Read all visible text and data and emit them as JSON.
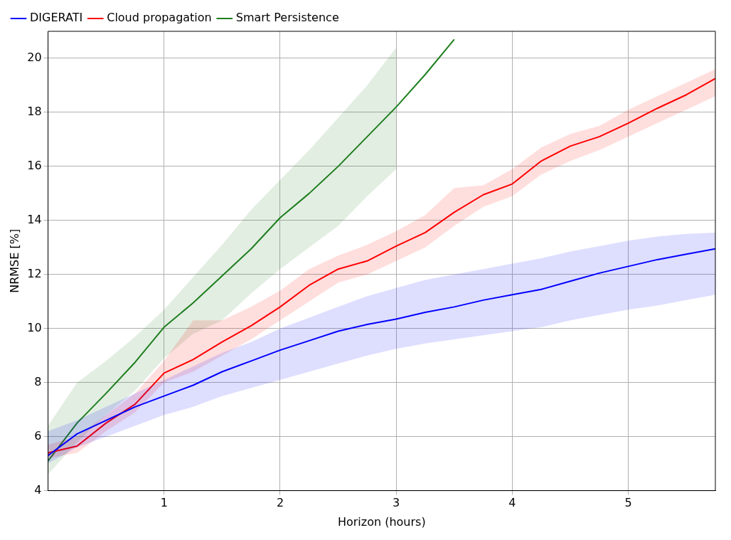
{
  "chart_data": {
    "type": "line",
    "xlabel": "Horizon (hours)",
    "ylabel": "NRMSE [%]",
    "x": [
      0,
      0.25,
      0.5,
      0.75,
      1,
      1.25,
      1.5,
      1.75,
      2,
      2.25,
      2.5,
      2.75,
      3,
      3.25,
      3.5,
      3.75,
      4,
      4.25,
      4.5,
      4.75,
      5,
      5.25,
      5.5,
      5.75
    ],
    "xlim": [
      0,
      5.75
    ],
    "xticks": [
      1,
      2,
      3,
      4,
      5
    ],
    "ylim": [
      4,
      21
    ],
    "yticks": [
      4,
      6,
      8,
      10,
      12,
      14,
      16,
      18,
      20
    ],
    "grid": true,
    "legend": "top left",
    "series": [
      {
        "name": "DIGERATI",
        "color": "#0000ff",
        "values": [
          5.3,
          6.1,
          6.6,
          7.1,
          7.5,
          7.9,
          8.4,
          8.8,
          9.2,
          9.55,
          9.9,
          10.15,
          10.35,
          10.6,
          10.8,
          11.05,
          11.25,
          11.45,
          11.75,
          12.05,
          12.3,
          12.55,
          12.75,
          12.95
        ],
        "lower": [
          5.0,
          5.6,
          6.0,
          6.4,
          6.8,
          7.1,
          7.5,
          7.8,
          8.1,
          8.4,
          8.7,
          9.0,
          9.25,
          9.45,
          9.6,
          9.75,
          9.9,
          10.05,
          10.3,
          10.5,
          10.7,
          10.85,
          11.05,
          11.25
        ],
        "upper": [
          6.2,
          6.6,
          7.1,
          7.6,
          8.1,
          8.6,
          9.1,
          9.5,
          10.0,
          10.4,
          10.8,
          11.2,
          11.5,
          11.8,
          12.0,
          12.2,
          12.4,
          12.6,
          12.85,
          13.05,
          13.25,
          13.4,
          13.5,
          13.55
        ]
      },
      {
        "name": "Cloud propagation",
        "color": "#ff0000",
        "values": [
          5.4,
          5.65,
          6.5,
          7.2,
          8.35,
          8.85,
          9.5,
          10.1,
          10.8,
          11.6,
          12.2,
          12.5,
          13.05,
          13.55,
          14.3,
          14.95,
          15.35,
          16.2,
          16.75,
          17.1,
          17.6,
          18.15,
          18.65,
          19.25
        ],
        "lower": [
          5.2,
          5.4,
          6.2,
          6.9,
          8.0,
          8.4,
          9.0,
          9.6,
          10.3,
          11.0,
          11.7,
          12.0,
          12.5,
          13.0,
          13.8,
          14.5,
          14.9,
          15.7,
          16.2,
          16.6,
          17.1,
          17.6,
          18.1,
          18.6
        ],
        "upper": [
          5.7,
          6.0,
          6.8,
          7.6,
          8.8,
          10.3,
          10.3,
          10.8,
          11.4,
          12.2,
          12.7,
          13.1,
          13.6,
          14.2,
          15.2,
          15.3,
          15.9,
          16.7,
          17.2,
          17.5,
          18.1,
          18.6,
          19.1,
          19.6
        ]
      },
      {
        "name": "Smart Persistence",
        "color": "#1f7f1f",
        "values": [
          5.1,
          6.5,
          7.6,
          8.75,
          10.05,
          10.95,
          11.95,
          12.95,
          14.1,
          15.0,
          16.0,
          17.1,
          18.2,
          19.4,
          20.7,
          null,
          null,
          null,
          null,
          null,
          null,
          null,
          null,
          null
        ],
        "lower": [
          4.6,
          5.8,
          6.8,
          7.7,
          8.9,
          9.8,
          10.3,
          11.3,
          12.2,
          13.0,
          13.8,
          14.9,
          15.9,
          null,
          null,
          null,
          null,
          null,
          null,
          null,
          null,
          null,
          null,
          null
        ],
        "upper": [
          6.4,
          8.0,
          8.8,
          9.7,
          10.7,
          11.9,
          13.1,
          14.4,
          15.5,
          16.6,
          17.8,
          19.0,
          20.4,
          null,
          null,
          null,
          null,
          null,
          null,
          null,
          null,
          null,
          null,
          null
        ]
      }
    ]
  }
}
